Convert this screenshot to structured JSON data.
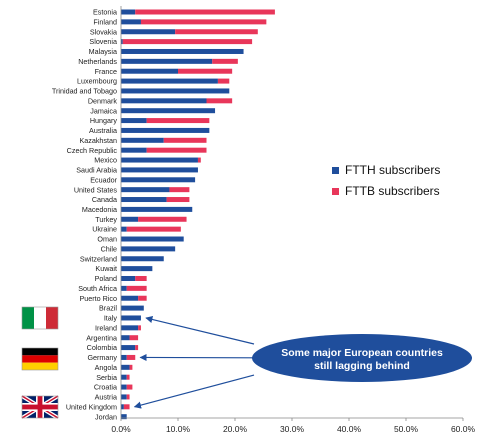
{
  "chart_data": {
    "type": "bar",
    "orientation": "horizontal",
    "stacked": true,
    "categories": [
      "Estonia",
      "Finland",
      "Slovakia",
      "Slovenia",
      "Malaysia",
      "Netherlands",
      "France",
      "Luxembourg",
      "Trinidad and Tobago",
      "Denmark",
      "Jamaica",
      "Hungary",
      "Australia",
      "Kazakhstan",
      "Czech Republic",
      "Mexico",
      "Saudi Arabia",
      "Ecuador",
      "United States",
      "Canada",
      "Macedonia",
      "Turkey",
      "Ukraine",
      "Oman",
      "Chile",
      "Switzerland",
      "Kuwait",
      "Poland",
      "South Africa",
      "Puerto Rico",
      "Brazil",
      "Italy",
      "Ireland",
      "Argentina",
      "Colombia",
      "Germany",
      "Angola",
      "Serbia",
      "Croatia",
      "Austria",
      "United Kingdom",
      "Jordan"
    ],
    "series": [
      {
        "name": "FTTH subscribers",
        "color": "#1f4e9c",
        "values": [
          2.5,
          3.5,
          9.5,
          0.3,
          21.5,
          16.0,
          10.0,
          17.0,
          19.0,
          15.0,
          16.5,
          4.5,
          15.5,
          7.5,
          4.5,
          13.5,
          13.5,
          13.0,
          8.5,
          8.0,
          12.5,
          3.0,
          1.0,
          11.0,
          9.5,
          7.5,
          5.5,
          2.5,
          1.0,
          3.0,
          4.0,
          3.5,
          3.0,
          1.5,
          2.5,
          1.0,
          1.5,
          1.0,
          1.0,
          1.0,
          0.5,
          1.0
        ]
      },
      {
        "name": "FTTB subscribers",
        "color": "#e8365a",
        "values": [
          24.5,
          22.0,
          14.5,
          22.7,
          0.0,
          4.5,
          9.5,
          2.0,
          0.0,
          4.5,
          0.0,
          11.0,
          0.0,
          7.5,
          10.5,
          0.5,
          0.0,
          0.0,
          3.5,
          4.0,
          0.0,
          8.5,
          9.5,
          0.0,
          0.0,
          0.0,
          0.0,
          2.0,
          3.5,
          1.5,
          0.0,
          0.0,
          0.5,
          1.5,
          0.5,
          1.5,
          0.5,
          0.5,
          1.0,
          0.5,
          1.0,
          0.0
        ]
      }
    ],
    "xlim": [
      0,
      60
    ],
    "xticks": [
      "0.0%",
      "10.0%",
      "20.0%",
      "30.0%",
      "40.0%",
      "50.0%",
      "60.0%"
    ],
    "legend": {
      "position": "right",
      "entries": [
        "FTTH subscribers",
        "FTTB subscribers"
      ]
    },
    "grid": false,
    "annotation": {
      "text_line1": "Some major European countries",
      "text_line2": "still lagging behind",
      "bubble_color": "#1f4e9c",
      "points_to": [
        "Italy",
        "Germany",
        "United Kingdom"
      ]
    },
    "flags": [
      {
        "country": "Italy",
        "icon": "italy-flag-icon",
        "colors": [
          "#009246",
          "#ffffff",
          "#ce2b37"
        ]
      },
      {
        "country": "Germany",
        "icon": "germany-flag-icon",
        "colors": [
          "#000000",
          "#dd0000",
          "#ffce00"
        ]
      },
      {
        "country": "United Kingdom",
        "icon": "uk-flag-icon",
        "colors": [
          "#012169",
          "#ffffff",
          "#c8102e"
        ]
      }
    ]
  }
}
